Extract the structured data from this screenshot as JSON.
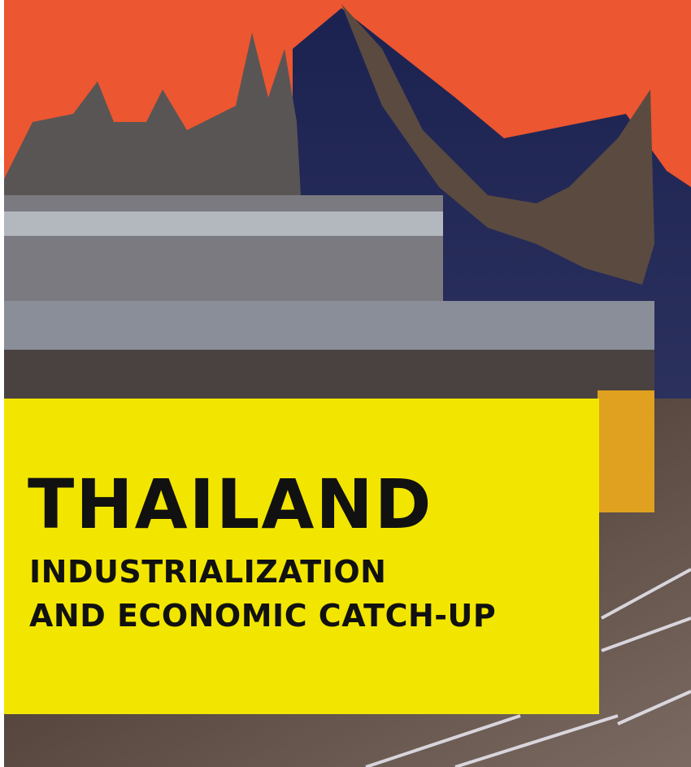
{
  "cover": {
    "title": "THAILAND",
    "subtitle_lines": [
      "INDUSTRIALIZATION",
      "AND ECONOMIC CATCH-UP"
    ]
  }
}
